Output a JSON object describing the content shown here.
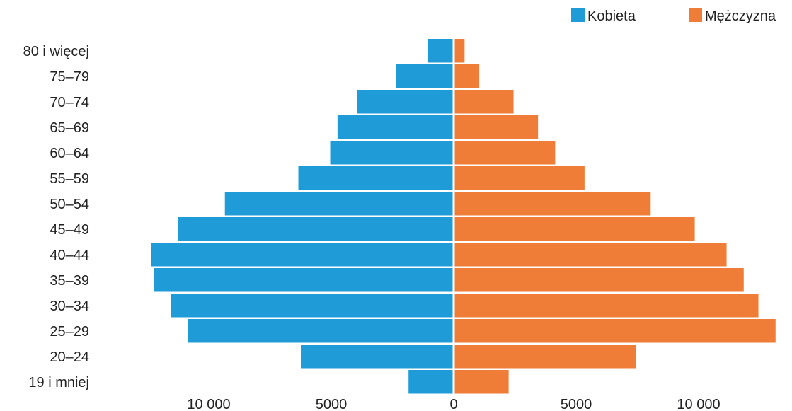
{
  "chart_data": {
    "type": "bar",
    "orientation": "horizontal",
    "layout": "population-pyramid",
    "categories": [
      "80 i więcej",
      "75–79",
      "70–74",
      "65–69",
      "60–64",
      "55–59",
      "50–54",
      "45–49",
      "40–44",
      "35–39",
      "30–34",
      "25–29",
      "20–24",
      "19 i mniej"
    ],
    "series": [
      {
        "name": "Kobieta",
        "side": "left",
        "color": "#1f9cd8",
        "values": [
          1000,
          2300,
          3900,
          4700,
          5000,
          6300,
          9300,
          11200,
          12300,
          12200,
          11500,
          10800,
          6200,
          1800
        ]
      },
      {
        "name": "Mężczyzna",
        "side": "right",
        "color": "#ef7d37",
        "values": [
          400,
          1000,
          2400,
          3400,
          4100,
          5300,
          8000,
          9800,
          11100,
          11800,
          12400,
          13100,
          7400,
          2200
        ]
      }
    ],
    "xticks": [
      {
        "value": -10000,
        "label": "10 000"
      },
      {
        "value": -5000,
        "label": "5000"
      },
      {
        "value": 0,
        "label": "0"
      },
      {
        "value": 5000,
        "label": "5000"
      },
      {
        "value": 10000,
        "label": "10 000"
      }
    ],
    "xlim": [
      -13100,
      13100
    ],
    "legend": {
      "position": "top-right"
    },
    "title": "",
    "xlabel": "",
    "ylabel": "",
    "grid": false
  }
}
